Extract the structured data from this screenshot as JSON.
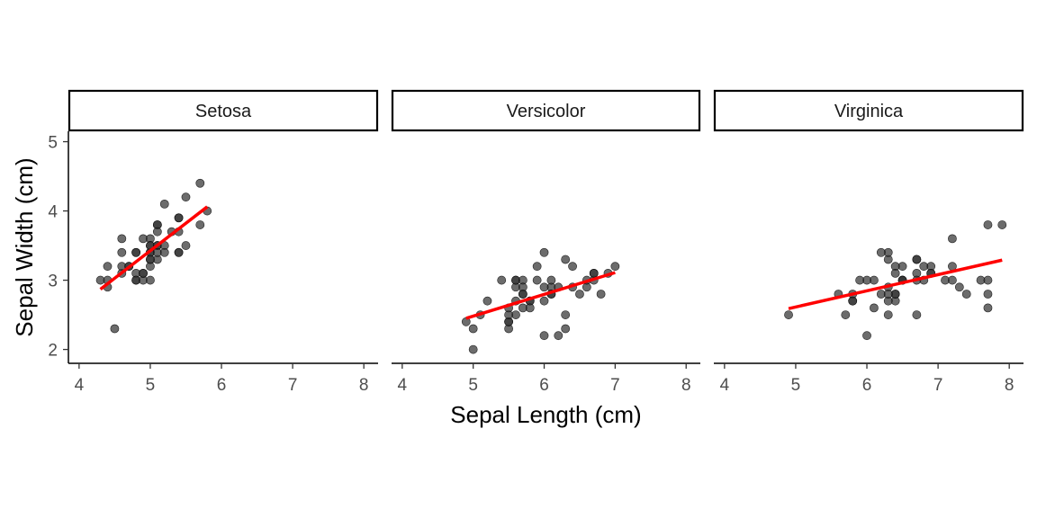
{
  "chart_data": {
    "type": "scatter",
    "xlabel": "Sepal Length (cm)",
    "ylabel": "Sepal Width (cm)",
    "xlim": [
      3.85,
      8.2
    ],
    "ylim": [
      1.8,
      5.15
    ],
    "x_ticks": [
      4,
      5,
      6,
      7,
      8
    ],
    "y_ticks": [
      2,
      3,
      4,
      5
    ],
    "grid": false,
    "legend": "none",
    "point_color": "#333333",
    "line_color": "#ff0000",
    "facets": [
      {
        "name": "Setosa",
        "points": [
          [
            4.3,
            3.0
          ],
          [
            4.4,
            2.9
          ],
          [
            4.4,
            3.0
          ],
          [
            4.4,
            3.2
          ],
          [
            4.5,
            2.3
          ],
          [
            4.6,
            3.1
          ],
          [
            4.6,
            3.4
          ],
          [
            4.6,
            3.6
          ],
          [
            4.6,
            3.2
          ],
          [
            4.7,
            3.2
          ],
          [
            4.7,
            3.2
          ],
          [
            4.8,
            3.4
          ],
          [
            4.8,
            3.0
          ],
          [
            4.8,
            3.4
          ],
          [
            4.8,
            3.1
          ],
          [
            4.8,
            3.0
          ],
          [
            4.9,
            3.0
          ],
          [
            4.9,
            3.1
          ],
          [
            4.9,
            3.6
          ],
          [
            4.9,
            3.1
          ],
          [
            5.0,
            3.6
          ],
          [
            5.0,
            3.4
          ],
          [
            5.0,
            3.0
          ],
          [
            5.0,
            3.4
          ],
          [
            5.0,
            3.2
          ],
          [
            5.0,
            3.5
          ],
          [
            5.0,
            3.3
          ],
          [
            5.0,
            3.5
          ],
          [
            5.1,
            3.5
          ],
          [
            5.1,
            3.5
          ],
          [
            5.1,
            3.8
          ],
          [
            5.1,
            3.8
          ],
          [
            5.1,
            3.7
          ],
          [
            5.1,
            3.3
          ],
          [
            5.1,
            3.4
          ],
          [
            5.2,
            3.5
          ],
          [
            5.2,
            3.4
          ],
          [
            5.2,
            4.1
          ],
          [
            5.4,
            3.9
          ],
          [
            5.4,
            3.7
          ],
          [
            5.4,
            3.9
          ],
          [
            5.4,
            3.4
          ],
          [
            5.4,
            3.4
          ],
          [
            5.5,
            4.2
          ],
          [
            5.5,
            3.5
          ],
          [
            5.7,
            4.4
          ],
          [
            5.7,
            3.8
          ],
          [
            5.8,
            4.0
          ],
          [
            5.3,
            3.7
          ],
          [
            5.0,
            3.3
          ]
        ],
        "fit": {
          "x": [
            4.3,
            5.8
          ],
          "y": [
            2.87,
            4.06
          ]
        }
      },
      {
        "name": "Versicolor",
        "points": [
          [
            7.0,
            3.2
          ],
          [
            6.4,
            3.2
          ],
          [
            6.9,
            3.1
          ],
          [
            5.5,
            2.3
          ],
          [
            6.5,
            2.8
          ],
          [
            5.7,
            2.8
          ],
          [
            6.3,
            3.3
          ],
          [
            4.9,
            2.4
          ],
          [
            6.6,
            2.9
          ],
          [
            5.2,
            2.7
          ],
          [
            5.0,
            2.0
          ],
          [
            5.9,
            3.0
          ],
          [
            6.0,
            2.2
          ],
          [
            6.1,
            2.9
          ],
          [
            5.6,
            2.9
          ],
          [
            6.7,
            3.1
          ],
          [
            5.6,
            3.0
          ],
          [
            5.8,
            2.7
          ],
          [
            6.2,
            2.2
          ],
          [
            5.6,
            2.5
          ],
          [
            5.9,
            3.2
          ],
          [
            6.1,
            2.8
          ],
          [
            6.3,
            2.5
          ],
          [
            6.1,
            2.8
          ],
          [
            6.4,
            2.9
          ],
          [
            6.6,
            3.0
          ],
          [
            6.8,
            2.8
          ],
          [
            6.7,
            3.0
          ],
          [
            6.0,
            2.9
          ],
          [
            5.7,
            2.6
          ],
          [
            5.5,
            2.4
          ],
          [
            5.5,
            2.4
          ],
          [
            5.8,
            2.7
          ],
          [
            6.0,
            2.7
          ],
          [
            5.4,
            3.0
          ],
          [
            6.0,
            3.4
          ],
          [
            6.7,
            3.1
          ],
          [
            6.3,
            2.3
          ],
          [
            5.6,
            3.0
          ],
          [
            5.5,
            2.5
          ],
          [
            5.5,
            2.6
          ],
          [
            6.1,
            3.0
          ],
          [
            5.8,
            2.6
          ],
          [
            5.0,
            2.3
          ],
          [
            5.6,
            2.7
          ],
          [
            5.7,
            3.0
          ],
          [
            5.7,
            2.9
          ],
          [
            6.2,
            2.9
          ],
          [
            5.1,
            2.5
          ],
          [
            5.7,
            2.8
          ]
        ],
        "fit": {
          "x": [
            4.9,
            7.0
          ],
          "y": [
            2.45,
            3.11
          ]
        }
      },
      {
        "name": "Virginica",
        "points": [
          [
            6.3,
            3.3
          ],
          [
            5.8,
            2.7
          ],
          [
            7.1,
            3.0
          ],
          [
            6.3,
            2.9
          ],
          [
            6.5,
            3.0
          ],
          [
            7.6,
            3.0
          ],
          [
            4.9,
            2.5
          ],
          [
            7.3,
            2.9
          ],
          [
            6.7,
            2.5
          ],
          [
            7.2,
            3.6
          ],
          [
            6.5,
            3.2
          ],
          [
            6.4,
            2.7
          ],
          [
            6.8,
            3.0
          ],
          [
            5.7,
            2.5
          ],
          [
            5.8,
            2.8
          ],
          [
            6.4,
            3.2
          ],
          [
            6.5,
            3.0
          ],
          [
            7.7,
            3.8
          ],
          [
            7.7,
            2.6
          ],
          [
            6.0,
            2.2
          ],
          [
            6.9,
            3.2
          ],
          [
            5.6,
            2.8
          ],
          [
            7.7,
            2.8
          ],
          [
            6.3,
            2.7
          ],
          [
            6.7,
            3.3
          ],
          [
            7.2,
            3.2
          ],
          [
            6.2,
            2.8
          ],
          [
            6.1,
            3.0
          ],
          [
            6.4,
            2.8
          ],
          [
            7.2,
            3.0
          ],
          [
            7.4,
            2.8
          ],
          [
            7.9,
            3.8
          ],
          [
            6.4,
            2.8
          ],
          [
            6.3,
            2.8
          ],
          [
            6.1,
            2.6
          ],
          [
            7.7,
            3.0
          ],
          [
            6.3,
            3.4
          ],
          [
            6.4,
            3.1
          ],
          [
            6.0,
            3.0
          ],
          [
            6.9,
            3.1
          ],
          [
            6.7,
            3.1
          ],
          [
            6.9,
            3.1
          ],
          [
            5.8,
            2.7
          ],
          [
            6.8,
            3.2
          ],
          [
            6.7,
            3.3
          ],
          [
            6.7,
            3.0
          ],
          [
            6.3,
            2.5
          ],
          [
            6.5,
            3.0
          ],
          [
            6.2,
            3.4
          ],
          [
            5.9,
            3.0
          ]
        ],
        "fit": {
          "x": [
            4.9,
            7.9
          ],
          "y": [
            2.59,
            3.29
          ]
        }
      }
    ]
  }
}
